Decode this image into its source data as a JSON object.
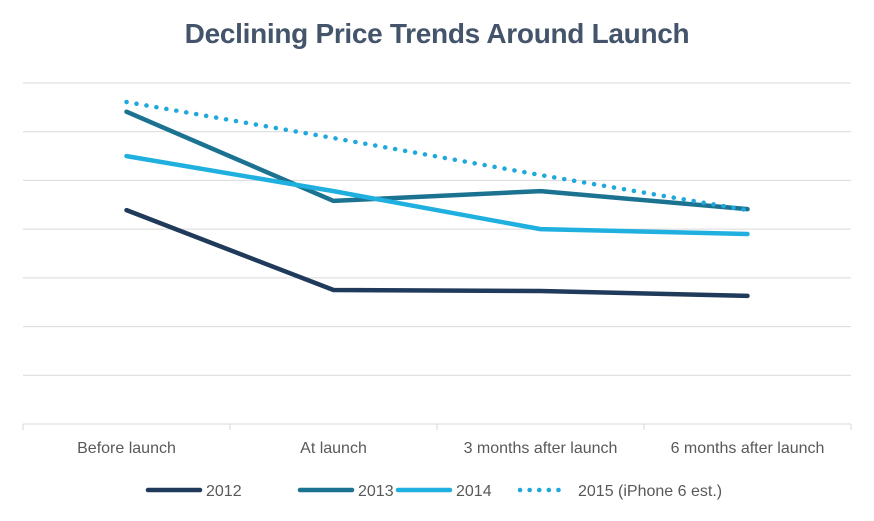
{
  "chart_data": {
    "type": "line",
    "title": "Declining Price Trends Around Launch",
    "xlabel": "",
    "ylabel": "",
    "categories": [
      "Before launch",
      "At launch",
      "3 months after launch",
      "6 months after launch"
    ],
    "y_tick_labels_shown": false,
    "ylim": [
      0,
      7
    ],
    "grid": true,
    "legend_position": "bottom",
    "series": [
      {
        "name": "2012",
        "color": "#1f3a5a",
        "style": "solid",
        "values": [
          4.39,
          2.75,
          2.73,
          2.63
        ]
      },
      {
        "name": "2013",
        "color": "#1b7391",
        "style": "solid",
        "values": [
          6.41,
          4.58,
          4.78,
          4.41
        ]
      },
      {
        "name": "2014",
        "color": "#1fb0e0",
        "style": "solid",
        "values": [
          5.5,
          4.78,
          4.0,
          3.9
        ]
      },
      {
        "name": "2015 (iPhone 6 est.)",
        "color": "#1fa8dc",
        "style": "dotted",
        "values": [
          6.61,
          5.87,
          5.11,
          4.39
        ]
      }
    ],
    "colors": {
      "title": "#44546a",
      "gridline": "#d9d9d9",
      "axis_label": "#595959"
    }
  }
}
